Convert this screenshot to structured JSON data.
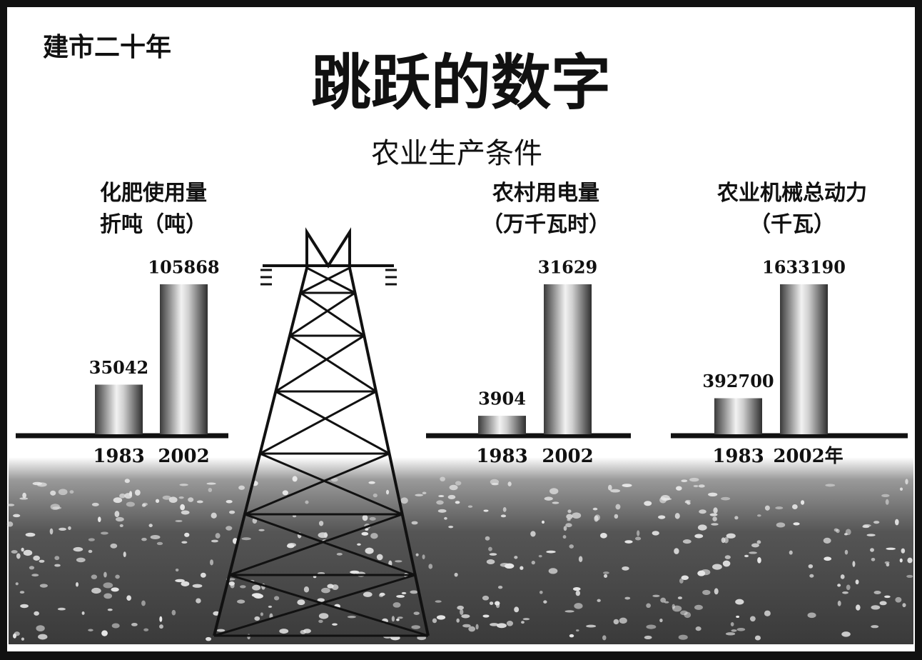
{
  "header": {
    "kicker": "建市二十年",
    "title": "跳跃的数字",
    "subtitle": "农业生产条件"
  },
  "chart_data": [
    {
      "type": "bar",
      "title": "化肥使用量",
      "subtitle": "折吨（吨）",
      "categories": [
        "1983",
        "2002"
      ],
      "values": [
        35042,
        105868
      ]
    },
    {
      "type": "bar",
      "title": "农村用电量",
      "subtitle": "（万千瓦时）",
      "categories": [
        "1983",
        "2002"
      ],
      "values": [
        3904,
        31629
      ]
    },
    {
      "type": "bar",
      "title": "农业机械总动力",
      "subtitle": "（千瓦）",
      "categories": [
        "1983",
        "2002年"
      ],
      "values": [
        392700,
        1633190
      ]
    }
  ]
}
